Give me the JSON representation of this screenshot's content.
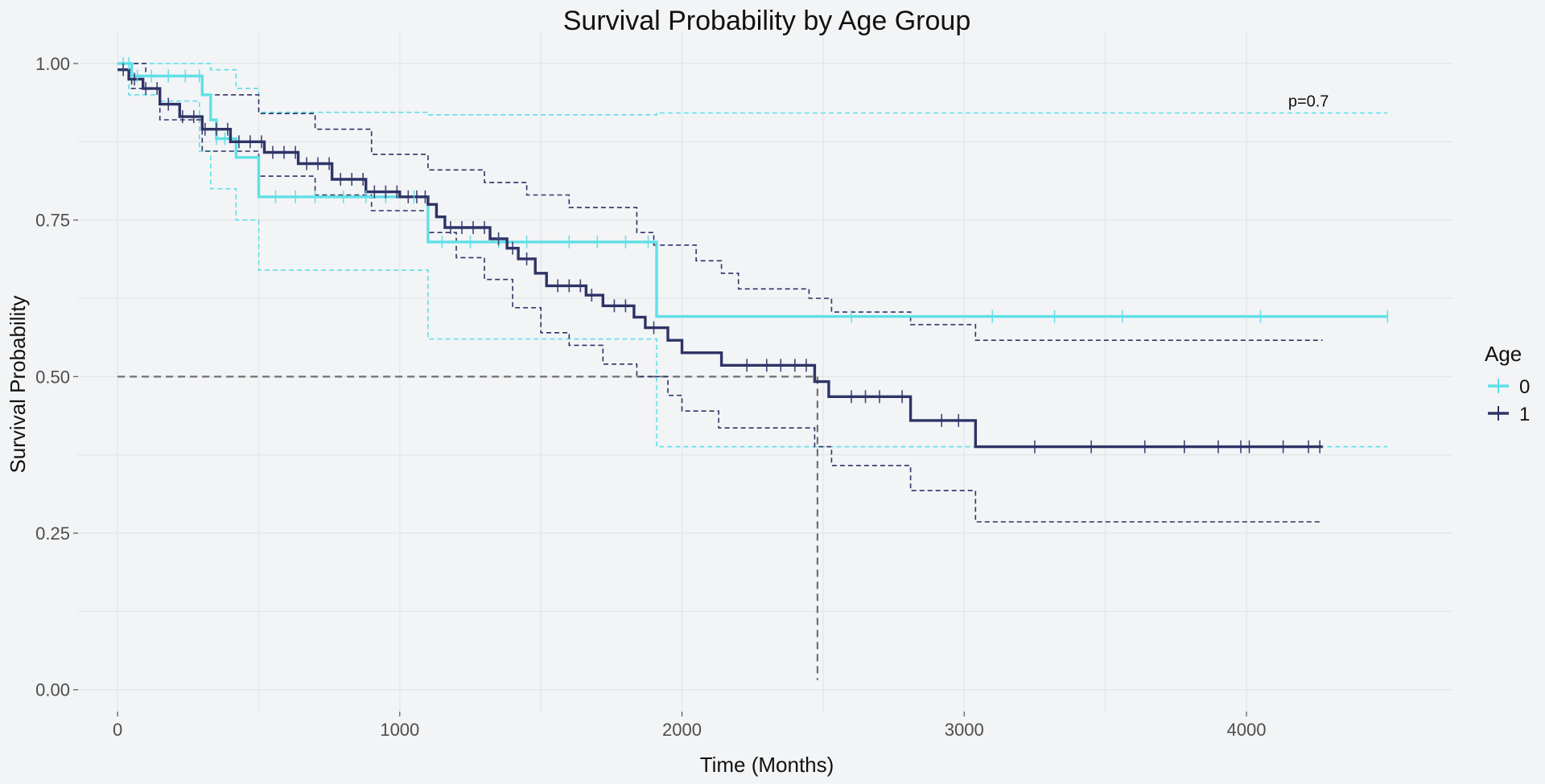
{
  "chart_data": {
    "type": "line",
    "subtype": "kaplan-meier step survival curves with confidence bands and censor marks",
    "title": "Survival Probability by Age Group",
    "xlabel": "Time (Months)",
    "ylabel": "Survival Probability",
    "xlim": [
      -140,
      4730
    ],
    "ylim": [
      -0.035,
      1.05
    ],
    "x_ticks": [
      0,
      1000,
      2000,
      3000,
      4000
    ],
    "x_tick_labels": [
      "0",
      "1000",
      "2000",
      "3000",
      "4000"
    ],
    "y_ticks": [
      0,
      0.25,
      0.5,
      0.75,
      1.0
    ],
    "y_tick_labels": [
      "0.00",
      "0.25",
      "0.50",
      "0.75",
      "1.00"
    ],
    "grid": true,
    "legend": {
      "title": "Age",
      "placement": "right"
    },
    "annotation": {
      "text": "p=0.7",
      "x": 4220,
      "y": 0.94
    },
    "median_line": {
      "y": 0.5,
      "x": 2480
    },
    "series": [
      {
        "name": "0",
        "color": "#5ee0e6",
        "steps": [
          [
            0,
            1.0
          ],
          [
            50,
            0.98
          ],
          [
            300,
            0.95
          ],
          [
            330,
            0.91
          ],
          [
            350,
            0.88
          ],
          [
            420,
            0.85
          ],
          [
            500,
            0.787
          ],
          [
            1100,
            0.715
          ],
          [
            1910,
            0.596
          ],
          [
            4500,
            0.596
          ]
        ],
        "lower": [
          [
            0,
            1.0
          ],
          [
            40,
            0.95
          ],
          [
            150,
            0.94
          ],
          [
            290,
            0.86
          ],
          [
            330,
            0.8
          ],
          [
            420,
            0.75
          ],
          [
            500,
            0.67
          ],
          [
            1100,
            0.56
          ],
          [
            1910,
            0.388
          ],
          [
            4500,
            0.388
          ]
        ],
        "upper": [
          [
            0,
            1.0
          ],
          [
            330,
            0.99
          ],
          [
            420,
            0.96
          ],
          [
            500,
            0.922
          ],
          [
            1100,
            0.918
          ],
          [
            1910,
            0.921
          ],
          [
            4500,
            0.921
          ]
        ],
        "censor_times": [
          20,
          40,
          70,
          120,
          180,
          240,
          290,
          350,
          380,
          560,
          630,
          700,
          800,
          880,
          950,
          1050,
          1150,
          1250,
          1350,
          1450,
          1600,
          1700,
          1800,
          1880,
          2600,
          3100,
          3320,
          3560,
          4050,
          4500
        ]
      },
      {
        "name": "1",
        "color": "#2e3366",
        "steps": [
          [
            0,
            0.99
          ],
          [
            40,
            0.975
          ],
          [
            90,
            0.96
          ],
          [
            150,
            0.935
          ],
          [
            220,
            0.915
          ],
          [
            300,
            0.895
          ],
          [
            400,
            0.875
          ],
          [
            520,
            0.858
          ],
          [
            640,
            0.84
          ],
          [
            760,
            0.815
          ],
          [
            880,
            0.795
          ],
          [
            1000,
            0.787
          ],
          [
            1100,
            0.775
          ],
          [
            1130,
            0.755
          ],
          [
            1160,
            0.738
          ],
          [
            1320,
            0.72
          ],
          [
            1380,
            0.705
          ],
          [
            1420,
            0.688
          ],
          [
            1480,
            0.665
          ],
          [
            1520,
            0.645
          ],
          [
            1660,
            0.63
          ],
          [
            1720,
            0.613
          ],
          [
            1830,
            0.595
          ],
          [
            1870,
            0.578
          ],
          [
            1950,
            0.558
          ],
          [
            2000,
            0.538
          ],
          [
            2140,
            0.518
          ],
          [
            2470,
            0.492
          ],
          [
            2520,
            0.468
          ],
          [
            2810,
            0.43
          ],
          [
            3040,
            0.388
          ],
          [
            4270,
            0.388
          ]
        ],
        "lower": [
          [
            0,
            0.99
          ],
          [
            50,
            0.96
          ],
          [
            150,
            0.91
          ],
          [
            300,
            0.86
          ],
          [
            500,
            0.82
          ],
          [
            700,
            0.79
          ],
          [
            900,
            0.765
          ],
          [
            1100,
            0.73
          ],
          [
            1200,
            0.69
          ],
          [
            1300,
            0.655
          ],
          [
            1400,
            0.61
          ],
          [
            1500,
            0.57
          ],
          [
            1600,
            0.55
          ],
          [
            1720,
            0.52
          ],
          [
            1840,
            0.5
          ],
          [
            1950,
            0.47
          ],
          [
            2000,
            0.445
          ],
          [
            2130,
            0.418
          ],
          [
            2470,
            0.388
          ],
          [
            2530,
            0.358
          ],
          [
            2810,
            0.318
          ],
          [
            3040,
            0.268
          ],
          [
            4270,
            0.268
          ]
        ],
        "upper": [
          [
            0,
            1.0
          ],
          [
            100,
            0.98
          ],
          [
            300,
            0.95
          ],
          [
            500,
            0.92
          ],
          [
            700,
            0.895
          ],
          [
            900,
            0.855
          ],
          [
            1100,
            0.83
          ],
          [
            1300,
            0.81
          ],
          [
            1450,
            0.79
          ],
          [
            1600,
            0.77
          ],
          [
            1840,
            0.73
          ],
          [
            1900,
            0.71
          ],
          [
            2050,
            0.685
          ],
          [
            2140,
            0.665
          ],
          [
            2200,
            0.64
          ],
          [
            2450,
            0.625
          ],
          [
            2530,
            0.603
          ],
          [
            2810,
            0.583
          ],
          [
            3040,
            0.558
          ],
          [
            4270,
            0.558
          ]
        ],
        "censor_times": [
          20,
          60,
          100,
          140,
          180,
          230,
          270,
          310,
          350,
          390,
          430,
          470,
          510,
          550,
          590,
          630,
          670,
          710,
          750,
          790,
          830,
          870,
          910,
          950,
          990,
          1030,
          1060,
          1090,
          1180,
          1220,
          1260,
          1300,
          1350,
          1400,
          1450,
          1560,
          1600,
          1640,
          1680,
          1760,
          1800,
          1900,
          2230,
          2300,
          2350,
          2400,
          2440,
          2600,
          2650,
          2700,
          2780,
          2920,
          2980,
          3250,
          3450,
          3640,
          3780,
          3900,
          3980,
          4010,
          4130,
          4220,
          4260
        ]
      }
    ]
  }
}
